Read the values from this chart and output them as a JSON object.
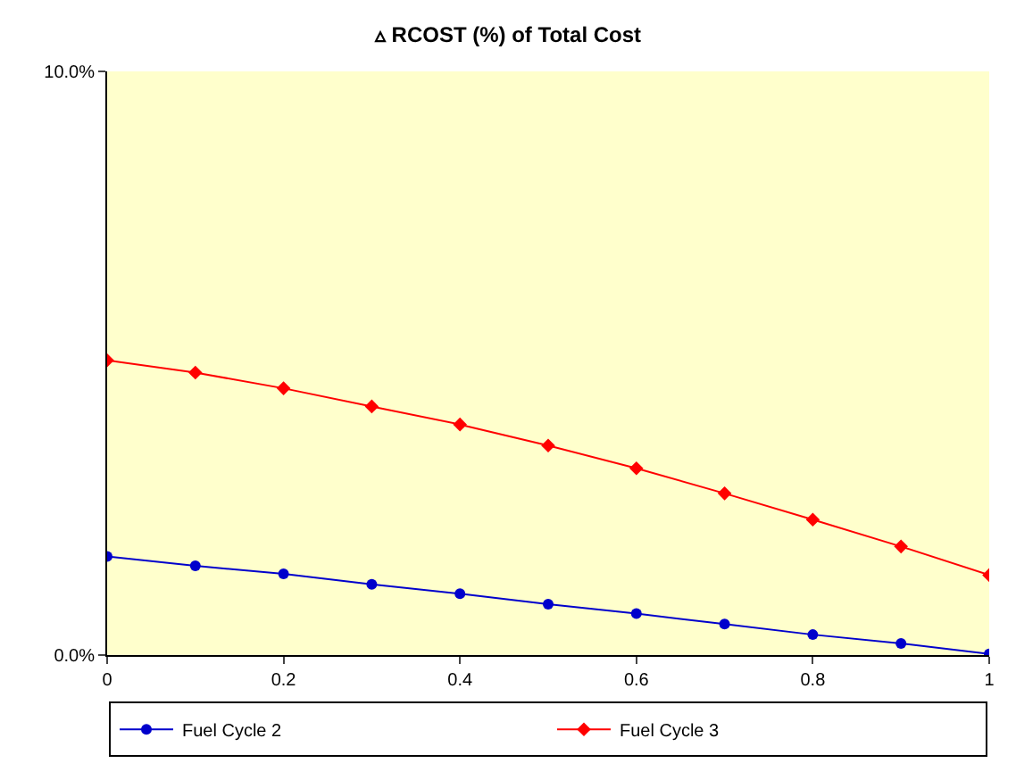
{
  "chart_data": {
    "type": "line",
    "title": "▵ RCOST (%) of Total Cost",
    "x": [
      0,
      0.1,
      0.2,
      0.3,
      0.4,
      0.5,
      0.6,
      0.7,
      0.8,
      0.9,
      1
    ],
    "series": [
      {
        "name": "Fuel Cycle 2",
        "color": "#0000cc",
        "marker": "circle",
        "values": [
          1.69,
          1.53,
          1.39,
          1.21,
          1.05,
          0.87,
          0.71,
          0.53,
          0.35,
          0.2,
          0.02
        ]
      },
      {
        "name": "Fuel Cycle 3",
        "color": "#ff0000",
        "marker": "diamond",
        "values": [
          5.05,
          4.84,
          4.57,
          4.26,
          3.95,
          3.59,
          3.2,
          2.77,
          2.32,
          1.86,
          1.37
        ]
      }
    ],
    "xlim": [
      0,
      1
    ],
    "xticks": [
      0,
      0.2,
      0.4,
      0.6,
      0.8,
      1
    ],
    "ylim": [
      0,
      10
    ],
    "yticks": [
      {
        "value": 0,
        "label": "0.0%"
      },
      {
        "value": 10,
        "label": "10.0%"
      }
    ],
    "grid": false,
    "legend": "bottom",
    "line_style": "solid"
  }
}
